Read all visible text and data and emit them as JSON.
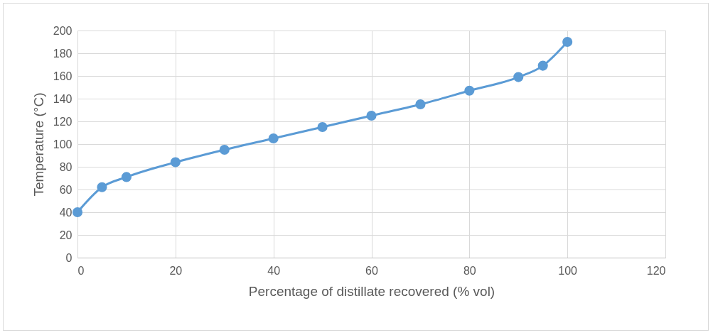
{
  "chart_data": {
    "type": "line",
    "xlabel": "Percentage of distillate recovered (% vol)",
    "ylabel": "Temperature (°C)",
    "x": [
      0,
      5,
      10,
      20,
      30,
      40,
      50,
      60,
      70,
      80,
      90,
      95,
      100
    ],
    "series": [
      {
        "color": "#5b9bd5",
        "values": [
          40,
          62,
          71,
          84,
          95,
          105,
          115,
          125,
          135,
          147,
          159,
          169,
          190
        ]
      }
    ],
    "xlim": [
      0,
      120
    ],
    "xticks": [
      0,
      20,
      40,
      60,
      80,
      100,
      120
    ],
    "ylim": [
      0,
      200
    ],
    "yticks": [
      0,
      20,
      40,
      60,
      80,
      100,
      120,
      140,
      160,
      180,
      200
    ],
    "grid": true,
    "marker": "circle",
    "line_style": "solid"
  }
}
